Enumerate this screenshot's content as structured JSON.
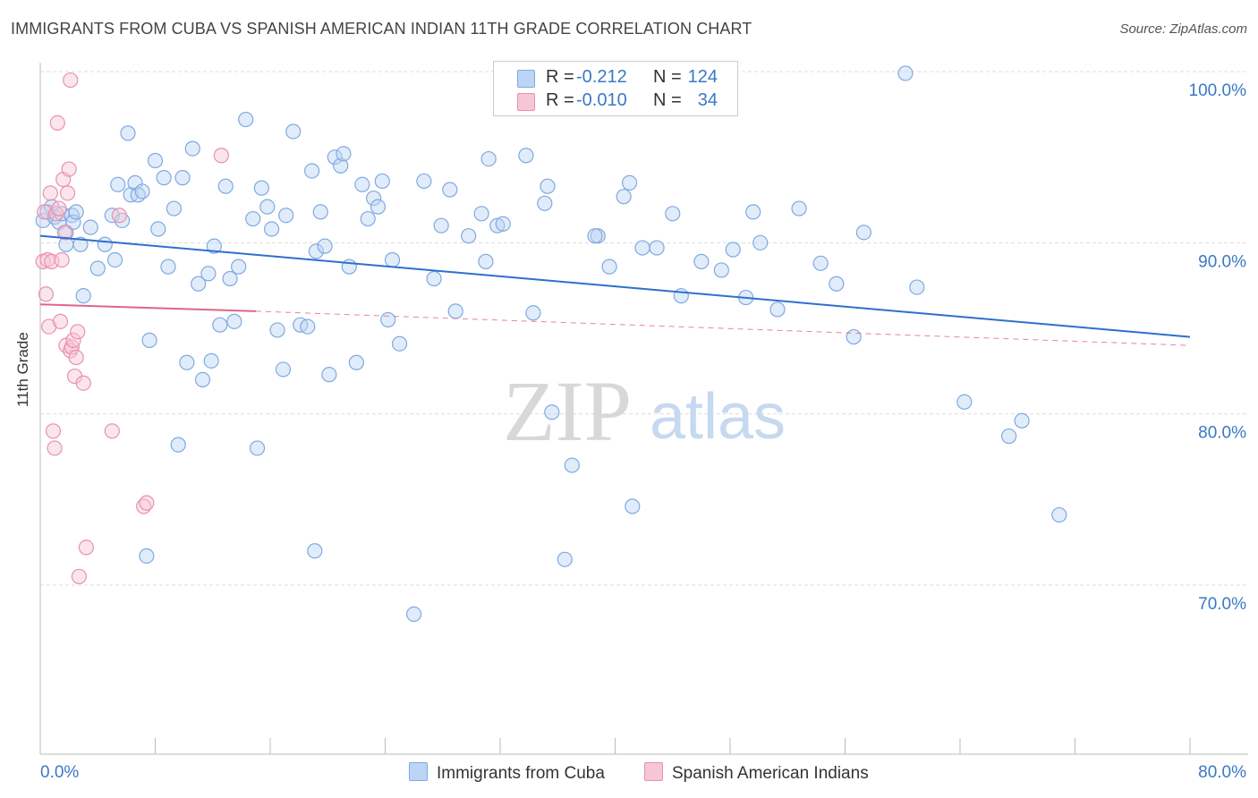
{
  "header": {
    "title": "IMMIGRANTS FROM CUBA VS SPANISH AMERICAN INDIAN 11TH GRADE CORRELATION CHART",
    "source": "Source: ZipAtlas.com"
  },
  "legend": {
    "series1": {
      "r_label": "R =",
      "r_value": "-0.212",
      "n_label": "N =",
      "n_value": "124"
    },
    "series2": {
      "r_label": "R =",
      "r_value": "-0.010",
      "n_label": "N =",
      "n_value": "34"
    }
  },
  "bottom_legend": {
    "series1": "Immigrants from Cuba",
    "series2": "Spanish American Indians"
  },
  "watermark": {
    "zip": "ZIP",
    "atlas": "atlas"
  },
  "colors": {
    "blue_fill": "#bcd4f5",
    "blue_stroke": "#7fa9e0",
    "blue_line": "#2f6fcf",
    "pink_fill": "#f7c6d6",
    "pink_stroke": "#e990ad",
    "pink_line": "#e0648e",
    "axis_text": "#3b78c4",
    "grid": "#dddddd"
  },
  "chart_data": {
    "type": "scatter",
    "title": "IMMIGRANTS FROM CUBA VS SPANISH AMERICAN INDIAN 11TH GRADE CORRELATION CHART",
    "xlabel": "",
    "ylabel": "11th Grade",
    "xlim": [
      0,
      80
    ],
    "ylim": [
      60,
      102
    ],
    "x_tick_labels": [
      "0.0%",
      "80.0%"
    ],
    "y_ticks": [
      70,
      80,
      90,
      100
    ],
    "y_tick_labels": [
      "70.0%",
      "80.0%",
      "90.0%",
      "100.0%"
    ],
    "grid": true,
    "legend_position": "top-center",
    "series": [
      {
        "name": "Immigrants from Cuba",
        "color": "#bcd4f5",
        "trend": {
          "x": [
            0,
            80
          ],
          "y": [
            90.4,
            84.5
          ],
          "style": "solid"
        },
        "points": [
          [
            0.2,
            91.3
          ],
          [
            0.5,
            91.8
          ],
          [
            0.8,
            92.1
          ],
          [
            1.0,
            91.5
          ],
          [
            1.3,
            91.2
          ],
          [
            1.5,
            91.7
          ],
          [
            1.8,
            90.6
          ],
          [
            2.2,
            91.6
          ],
          [
            2.3,
            91.2
          ],
          [
            2.5,
            91.8
          ],
          [
            2.8,
            89.9
          ],
          [
            3.0,
            86.9
          ],
          [
            3.5,
            90.9
          ],
          [
            4.0,
            88.5
          ],
          [
            4.5,
            89.9
          ],
          [
            5.0,
            91.6
          ],
          [
            5.2,
            89.0
          ],
          [
            5.4,
            93.4
          ],
          [
            5.7,
            91.3
          ],
          [
            6.1,
            96.4
          ],
          [
            6.3,
            92.8
          ],
          [
            6.6,
            93.5
          ],
          [
            6.8,
            92.8
          ],
          [
            7.1,
            93.0
          ],
          [
            7.6,
            84.3
          ],
          [
            8.0,
            94.8
          ],
          [
            8.2,
            90.8
          ],
          [
            8.6,
            93.8
          ],
          [
            8.9,
            88.6
          ],
          [
            9.3,
            92.0
          ],
          [
            9.6,
            78.2
          ],
          [
            9.9,
            93.8
          ],
          [
            10.2,
            83.0
          ],
          [
            10.6,
            95.5
          ],
          [
            11.0,
            87.6
          ],
          [
            11.3,
            82.0
          ],
          [
            11.7,
            88.2
          ],
          [
            11.9,
            83.1
          ],
          [
            12.1,
            89.8
          ],
          [
            12.5,
            85.2
          ],
          [
            12.9,
            93.3
          ],
          [
            13.2,
            87.9
          ],
          [
            13.5,
            85.4
          ],
          [
            13.8,
            88.6
          ],
          [
            14.3,
            97.2
          ],
          [
            14.8,
            91.4
          ],
          [
            15.1,
            78.0
          ],
          [
            15.4,
            93.2
          ],
          [
            15.8,
            92.1
          ],
          [
            16.1,
            90.8
          ],
          [
            16.5,
            84.9
          ],
          [
            16.9,
            82.6
          ],
          [
            17.1,
            91.6
          ],
          [
            17.6,
            96.5
          ],
          [
            18.1,
            85.2
          ],
          [
            18.6,
            85.1
          ],
          [
            18.9,
            94.2
          ],
          [
            19.2,
            89.5
          ],
          [
            19.5,
            91.8
          ],
          [
            19.8,
            89.8
          ],
          [
            20.1,
            82.3
          ],
          [
            20.5,
            95.0
          ],
          [
            20.9,
            94.5
          ],
          [
            21.1,
            95.2
          ],
          [
            21.5,
            88.6
          ],
          [
            22.0,
            83.0
          ],
          [
            22.4,
            93.4
          ],
          [
            22.8,
            91.4
          ],
          [
            23.2,
            92.6
          ],
          [
            23.5,
            92.1
          ],
          [
            23.8,
            93.6
          ],
          [
            24.2,
            85.5
          ],
          [
            24.5,
            89.0
          ],
          [
            25.0,
            84.1
          ],
          [
            26.0,
            68.3
          ],
          [
            26.7,
            93.6
          ],
          [
            27.4,
            87.9
          ],
          [
            27.9,
            91.0
          ],
          [
            28.5,
            93.1
          ],
          [
            28.9,
            86.0
          ],
          [
            29.8,
            90.4
          ],
          [
            30.7,
            91.7
          ],
          [
            31.0,
            88.9
          ],
          [
            31.2,
            94.9
          ],
          [
            31.8,
            91.0
          ],
          [
            32.2,
            91.1
          ],
          [
            33.8,
            95.1
          ],
          [
            34.3,
            85.9
          ],
          [
            35.1,
            92.3
          ],
          [
            35.3,
            93.3
          ],
          [
            35.6,
            80.1
          ],
          [
            36.5,
            71.5
          ],
          [
            37.0,
            77.0
          ],
          [
            38.8,
            90.4
          ],
          [
            39.6,
            88.6
          ],
          [
            40.6,
            92.7
          ],
          [
            41.0,
            93.5
          ],
          [
            41.2,
            74.6
          ],
          [
            41.9,
            89.7
          ],
          [
            42.9,
            89.7
          ],
          [
            44.0,
            91.7
          ],
          [
            44.6,
            86.9
          ],
          [
            46.0,
            88.9
          ],
          [
            47.4,
            88.4
          ],
          [
            48.2,
            89.6
          ],
          [
            49.1,
            86.8
          ],
          [
            49.6,
            91.8
          ],
          [
            50.1,
            90.0
          ],
          [
            51.3,
            86.1
          ],
          [
            52.8,
            92.0
          ],
          [
            54.3,
            88.8
          ],
          [
            55.4,
            87.6
          ],
          [
            56.6,
            84.5
          ],
          [
            57.3,
            90.6
          ],
          [
            60.2,
            99.9
          ],
          [
            61.0,
            87.4
          ],
          [
            64.3,
            80.7
          ],
          [
            67.4,
            78.7
          ],
          [
            68.3,
            79.6
          ],
          [
            70.9,
            74.1
          ],
          [
            1.8,
            89.9
          ],
          [
            7.4,
            71.7
          ],
          [
            19.1,
            72.0
          ],
          [
            38.6,
            90.4
          ]
        ]
      },
      {
        "name": "Spanish American Indians",
        "color": "#f7c6d6",
        "trend": {
          "x": [
            0,
            15
          ],
          "y": [
            86.4,
            86.0
          ],
          "dashed_to": [
            80,
            84.0
          ]
        },
        "points": [
          [
            0.2,
            88.9
          ],
          [
            0.3,
            91.8
          ],
          [
            0.4,
            87.0
          ],
          [
            0.5,
            89.0
          ],
          [
            0.6,
            85.1
          ],
          [
            0.7,
            92.9
          ],
          [
            0.8,
            88.9
          ],
          [
            0.9,
            79.0
          ],
          [
            1.0,
            78.0
          ],
          [
            1.1,
            91.7
          ],
          [
            1.2,
            97.0
          ],
          [
            1.3,
            92.0
          ],
          [
            1.4,
            85.4
          ],
          [
            1.5,
            89.0
          ],
          [
            1.6,
            93.7
          ],
          [
            1.7,
            90.6
          ],
          [
            1.8,
            84.0
          ],
          [
            1.9,
            92.9
          ],
          [
            2.0,
            94.3
          ],
          [
            2.1,
            83.7
          ],
          [
            2.2,
            83.9
          ],
          [
            2.3,
            84.3
          ],
          [
            2.4,
            82.2
          ],
          [
            2.5,
            83.3
          ],
          [
            2.6,
            84.8
          ],
          [
            2.7,
            70.5
          ],
          [
            3.0,
            81.8
          ],
          [
            3.2,
            72.2
          ],
          [
            5.0,
            79.0
          ],
          [
            5.5,
            91.6
          ],
          [
            7.2,
            74.6
          ],
          [
            7.4,
            74.8
          ],
          [
            2.1,
            99.5
          ],
          [
            12.6,
            95.1
          ]
        ]
      }
    ]
  }
}
